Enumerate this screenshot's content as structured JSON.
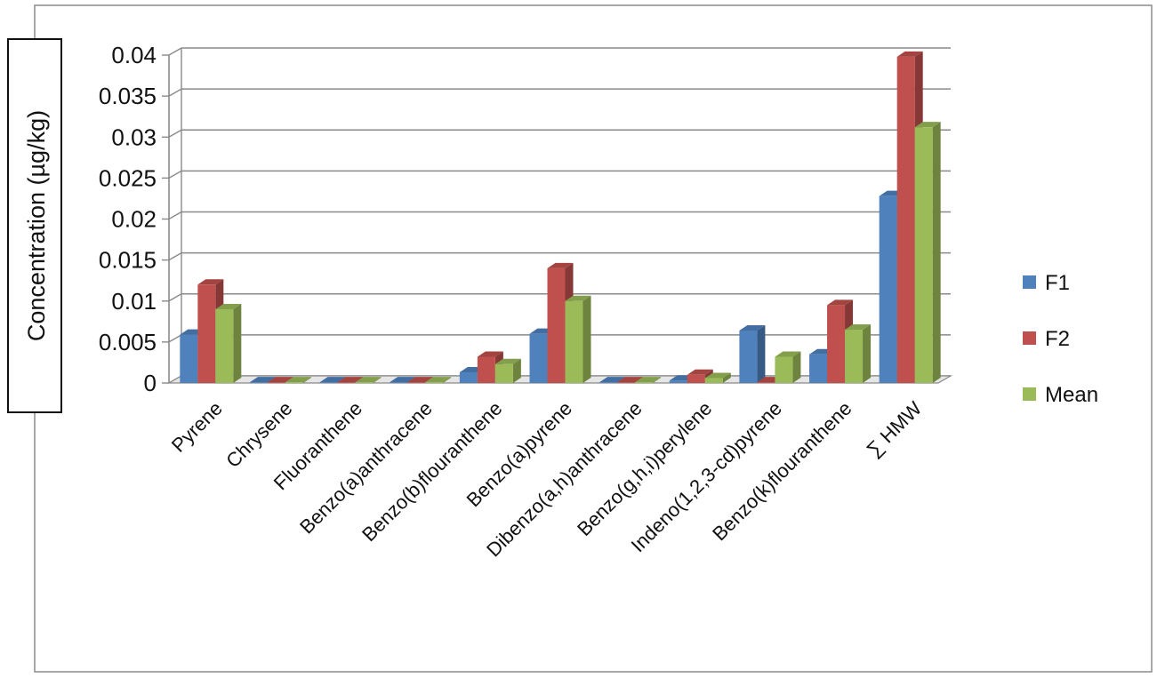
{
  "chart_data": {
    "type": "bar",
    "title": "",
    "xlabel": "",
    "ylabel": "Concentration (µg/kg)",
    "ylim": [
      0,
      0.04
    ],
    "yticks": [
      "0",
      "0.005",
      "0.01",
      "0.015",
      "0.02",
      "0.025",
      "0.03",
      "0.035",
      "0.04"
    ],
    "grid": true,
    "legend_position": "right",
    "categories": [
      "Pyrene",
      "Chrysene",
      "Fluoranthene",
      "Benzo(a)anthracene",
      "Benzo(b)flouranthene",
      "Benzo(a)pyrene",
      "Dibenzo(a,h)anthracene",
      "Benzo(g,h,i)perylene",
      "Indeno(1,2,3-cd)pyrene",
      "Benzo(k)flouranthene",
      "∑ HMW"
    ],
    "series": [
      {
        "name": "F1",
        "color": "#4f81bd",
        "values": [
          0.0059,
          0.0001,
          0.0001,
          0.0001,
          0.0013,
          0.006,
          0.0001,
          0.0003,
          0.0064,
          0.0035,
          0.0228
        ]
      },
      {
        "name": "F2",
        "color": "#c0504d",
        "values": [
          0.012,
          0.0001,
          0.0001,
          0.0001,
          0.0032,
          0.014,
          0.0001,
          0.001,
          0.0001,
          0.0095,
          0.0398
        ]
      },
      {
        "name": "Mean",
        "color": "#9bbb59",
        "values": [
          0.009,
          0.0001,
          0.0001,
          0.0001,
          0.0023,
          0.01,
          0.0001,
          0.0006,
          0.0032,
          0.0065,
          0.0312
        ]
      }
    ]
  }
}
